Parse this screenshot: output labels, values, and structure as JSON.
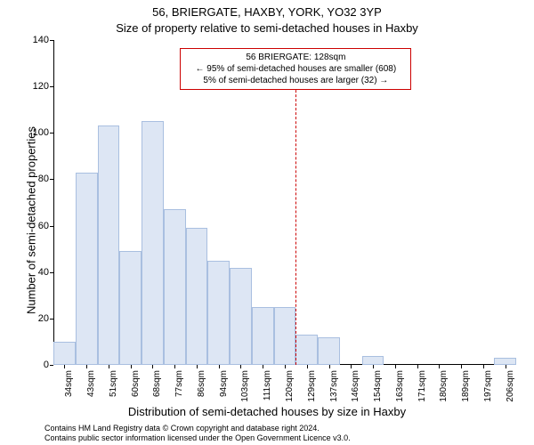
{
  "title_line1": "56, BRIERGATE, HAXBY, YORK, YO32 3YP",
  "title_line2": "Size of property relative to semi-detached houses in Haxby",
  "ylabel": "Number of semi-detached properties",
  "xlabel": "Distribution of semi-detached houses by size in Haxby",
  "footer_line1": "Contains HM Land Registry data © Crown copyright and database right 2024.",
  "footer_line2": "Contains public sector information licensed under the Open Government Licence v3.0.",
  "chart": {
    "type": "histogram",
    "ylim": [
      0,
      140
    ],
    "yticks": [
      0,
      20,
      40,
      60,
      80,
      100,
      120,
      140
    ],
    "x_categories": [
      "34sqm",
      "43sqm",
      "51sqm",
      "60sqm",
      "68sqm",
      "77sqm",
      "86sqm",
      "94sqm",
      "103sqm",
      "111sqm",
      "120sqm",
      "129sqm",
      "137sqm",
      "146sqm",
      "154sqm",
      "163sqm",
      "171sqm",
      "180sqm",
      "189sqm",
      "197sqm",
      "206sqm"
    ],
    "values": [
      10,
      83,
      103,
      49,
      105,
      67,
      59,
      45,
      42,
      25,
      25,
      13,
      12,
      0,
      4,
      0,
      0,
      0,
      0,
      0,
      3
    ],
    "bar_fill": "#dde6f4",
    "bar_stroke": "#a9bfe0",
    "bar_stroke_width": 1,
    "background_color": "#ffffff",
    "axis_color": "#000000",
    "tick_fontsize": 10,
    "label_fontsize": 13,
    "marker_line": {
      "color": "#cc0000",
      "bin_index_after": 11,
      "height_value": 130
    },
    "info_box": {
      "border_color": "#cc0000",
      "lines": [
        "56 BRIERGATE: 128sqm",
        "← 95% of semi-detached houses are smaller (608)",
        "5% of semi-detached houses are larger (32) →"
      ],
      "x_center_bin": 11,
      "y_value": 128
    }
  }
}
